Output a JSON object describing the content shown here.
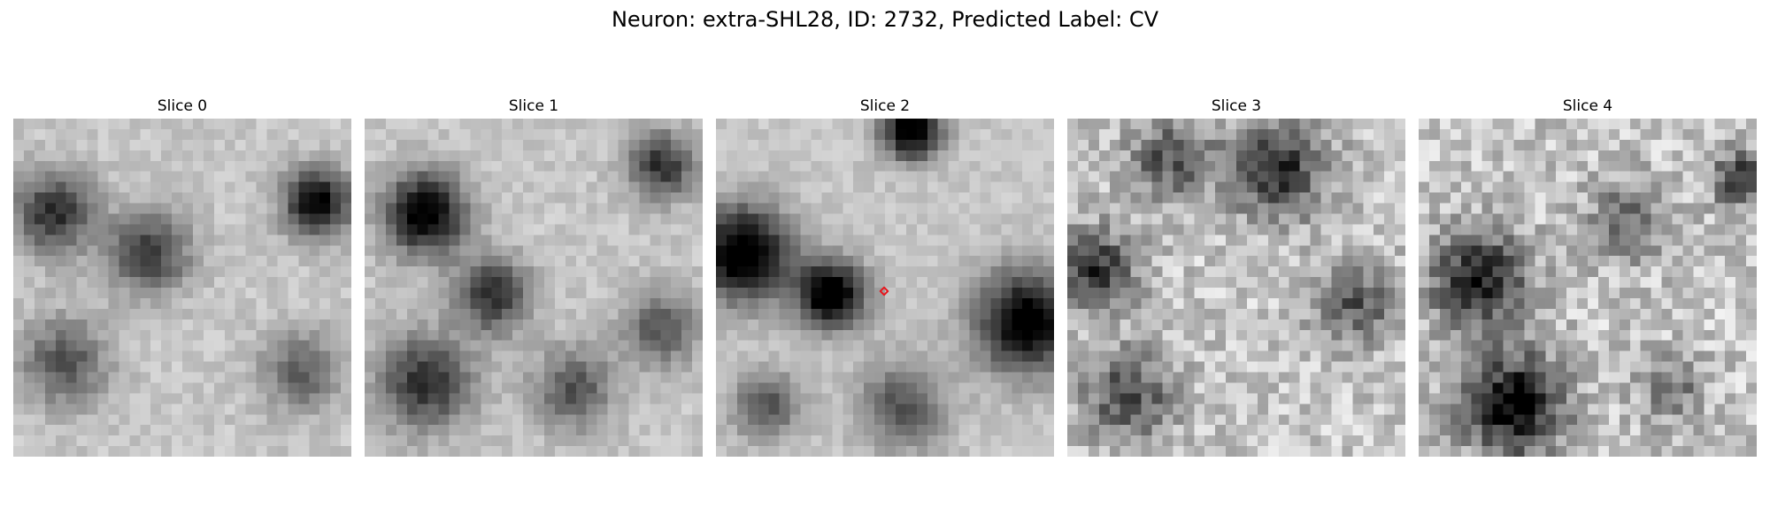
{
  "figure": {
    "title": "Neuron: extra-SHL28, ID: 2732, Predicted Label: CV"
  },
  "slices": [
    {
      "label": "Slice 0",
      "has_marker": false
    },
    {
      "label": "Slice 1",
      "has_marker": false
    },
    {
      "label": "Slice 2",
      "has_marker": true
    },
    {
      "label": "Slice 3",
      "has_marker": false
    },
    {
      "label": "Slice 4",
      "has_marker": false
    }
  ],
  "colors": {
    "marker": "#e8141b"
  },
  "image": {
    "grid": 32,
    "colormap": "gray"
  }
}
